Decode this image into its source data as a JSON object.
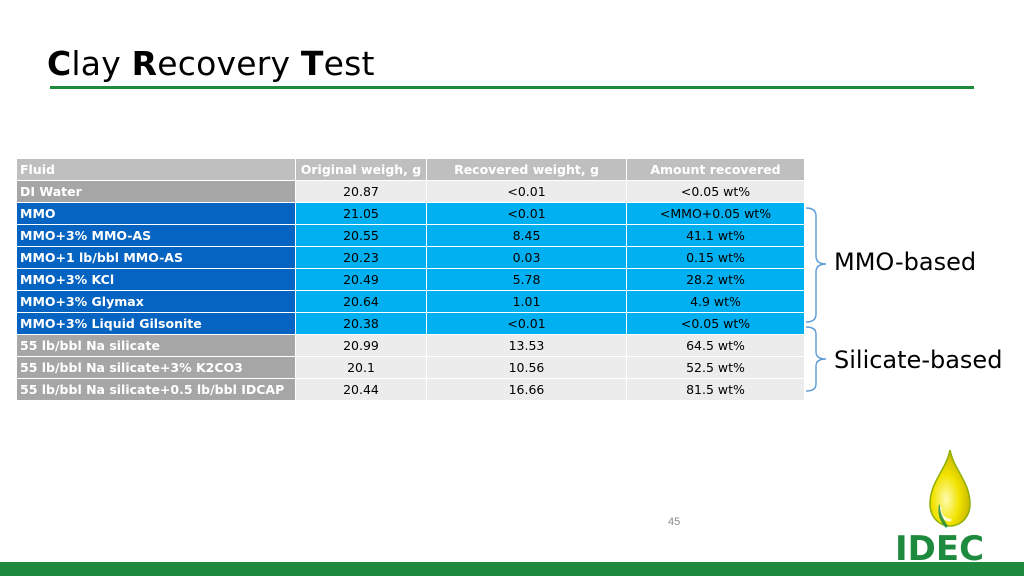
{
  "title": {
    "parts": [
      {
        "initial": "C",
        "rest": "lay "
      },
      {
        "initial": "R",
        "rest": "ecovery "
      },
      {
        "initial": "T",
        "rest": "est"
      }
    ]
  },
  "table": {
    "headers": [
      "Fluid",
      "Original weigh, g",
      "Recovered weight, g",
      "Amount recovered"
    ],
    "rows": [
      {
        "fluid": "DI Water",
        "original": "20.87",
        "recovered": "<0.01",
        "amount": "<0.05 wt%"
      },
      {
        "fluid": "MMO",
        "original": "21.05",
        "recovered": "<0.01",
        "amount": "<MMO+0.05 wt%"
      },
      {
        "fluid": "MMO+3% MMO-AS",
        "original": "20.55",
        "recovered": "8.45",
        "amount": "41.1 wt%"
      },
      {
        "fluid": "MMO+1 lb/bbl MMO-AS",
        "original": "20.23",
        "recovered": "0.03",
        "amount": "0.15 wt%"
      },
      {
        "fluid": "MMO+3% KCl",
        "original": "20.49",
        "recovered": "5.78",
        "amount": "28.2 wt%"
      },
      {
        "fluid": "MMO+3% Glymax",
        "original": "20.64",
        "recovered": "1.01",
        "amount": "4.9 wt%"
      },
      {
        "fluid": "MMO+3% Liquid Gilsonite",
        "original": "20.38",
        "recovered": "<0.01",
        "amount": "<0.05 wt%"
      },
      {
        "fluid": "55 lb/bbl Na silicate",
        "original": "20.99",
        "recovered": "13.53",
        "amount": "64.5 wt%"
      },
      {
        "fluid": "55 lb/bbl Na silicate+3% K2CO3",
        "original": "20.1",
        "recovered": "10.56",
        "amount": "52.5 wt%"
      },
      {
        "fluid": "55 lb/bbl Na silicate+0.5 lb/bbl IDCAP",
        "original": "20.44",
        "recovered": "16.66",
        "amount": "81.5 wt%"
      }
    ]
  },
  "groups": {
    "mmo": "MMO-based",
    "silicate": "Silicate-based"
  },
  "page_number": "45",
  "logo_text": "IDEC",
  "colors": {
    "brand_green": "#1e8a3e",
    "header_grey": "#bfbfbf",
    "mmo_dark_blue": "#0563c1",
    "mmo_light_blue": "#00b0f0",
    "row_grey": "#a6a6a6",
    "row_light": "#ececec",
    "bracket_blue": "#5b9bd5",
    "logo_drop": "#f2e300"
  }
}
